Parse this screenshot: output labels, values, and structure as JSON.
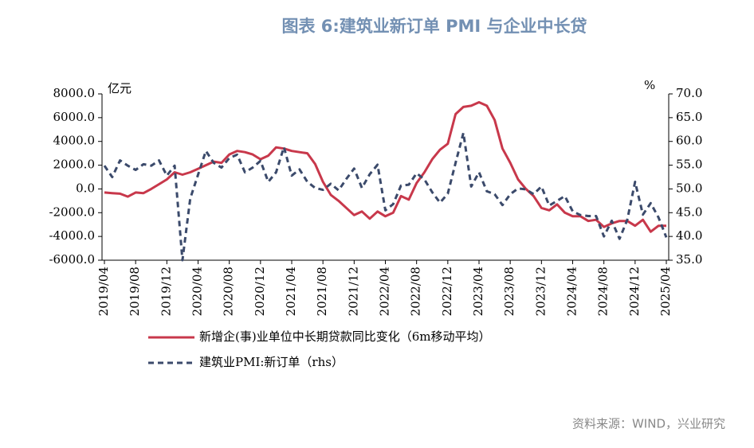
{
  "chart_data": {
    "type": "line",
    "title": "图表 6:建筑业新订单 PMI 与企业中长贷",
    "y_label": "亿元",
    "y2_label": "%",
    "source": "资料来源：WIND，兴业研究",
    "categories": [
      "2019/04",
      null,
      null,
      null,
      "2019/08",
      null,
      null,
      null,
      "2019/12",
      null,
      null,
      null,
      "2020/04",
      null,
      null,
      null,
      "2020/08",
      null,
      null,
      null,
      "2020/12",
      null,
      null,
      null,
      "2021/04",
      null,
      null,
      null,
      "2021/08",
      null,
      null,
      null,
      "2021/12",
      null,
      null,
      null,
      "2022/04",
      null,
      null,
      null,
      "2022/08",
      null,
      null,
      null,
      "2022/12",
      null,
      null,
      null,
      "2023/04",
      null,
      null,
      null,
      "2023/08",
      null,
      null,
      null,
      "2023/12",
      null,
      null,
      null,
      "2024/04",
      null,
      null,
      null,
      "2024/08",
      null,
      null,
      null,
      "2024/12",
      null,
      null,
      null,
      "2025/04"
    ],
    "ylim": [
      -6000,
      8000
    ],
    "yticks": [
      {
        "value": 8000,
        "label": "8000.0"
      },
      {
        "value": 6000,
        "label": "6000.0"
      },
      {
        "value": 4000,
        "label": "4000.0"
      },
      {
        "value": 2000,
        "label": "2000.0"
      },
      {
        "value": 0,
        "label": "0.0"
      },
      {
        "value": -2000,
        "label": "-2000.0"
      },
      {
        "value": -4000,
        "label": "-4000.0"
      },
      {
        "value": -6000,
        "label": "-6000.0"
      }
    ],
    "y2lim": [
      35,
      70
    ],
    "y2ticks": [
      {
        "value": 70,
        "label": "70.0"
      },
      {
        "value": 65,
        "label": "65.0"
      },
      {
        "value": 60,
        "label": "60.0"
      },
      {
        "value": 55,
        "label": "55.0"
      },
      {
        "value": 50,
        "label": "50.0"
      },
      {
        "value": 45,
        "label": "45.0"
      },
      {
        "value": 40,
        "label": "40.0"
      },
      {
        "value": 35,
        "label": "35.0"
      }
    ],
    "series": [
      {
        "name": "新增企(事)业单位中长期贷款同比变化（6m移动平均）",
        "color": "#c8384b",
        "dash": false,
        "values": [
          -300,
          -350,
          -400,
          -650,
          -300,
          -350,
          0,
          400,
          800,
          1400,
          1200,
          1400,
          1700,
          2000,
          2300,
          2200,
          2900,
          3200,
          3100,
          2900,
          2500,
          2800,
          3500,
          3400,
          3200,
          3100,
          3000,
          2100,
          600,
          -500,
          -1000,
          -1600,
          -2200,
          -1900,
          -2500,
          -1900,
          -2300,
          -2000,
          -600,
          -900,
          500,
          1400,
          2500,
          3300,
          3800,
          6300,
          6900,
          7000,
          7300,
          7000,
          5800,
          3400,
          2200,
          800,
          0,
          -600,
          -1600,
          -1800,
          -1300,
          -2000,
          -2300,
          -2300,
          -2700,
          -2600,
          -3200,
          -2900,
          -2700,
          -2700,
          -3100,
          -2600,
          -3600,
          -3100,
          -3100
        ]
      },
      {
        "name": "建筑业PMI:新订单（rhs）",
        "color": "#3b4a6b",
        "dash": true,
        "axis": "y2",
        "values": [
          54.9,
          52.5,
          56,
          54.9,
          54,
          55.2,
          54.9,
          56,
          52.8,
          54.9,
          35,
          48,
          53,
          58,
          55.5,
          54.5,
          56.5,
          57.2,
          53.5,
          54.5,
          55.9,
          51.5,
          53.5,
          58.8,
          52.8,
          54.1,
          51.5,
          50.2,
          49.8,
          51.1,
          49.7,
          52.1,
          54.3,
          50.2,
          53.1,
          55.1,
          45.5,
          46.8,
          50.7,
          50.9,
          53.3,
          52,
          49.3,
          47.1,
          49,
          55.5,
          61.8,
          50.5,
          53.5,
          49.5,
          48.9,
          46.6,
          48.9,
          50.1,
          49.9,
          48.9,
          50.5,
          46.5,
          47.5,
          48.5,
          45.3,
          44.5,
          44.3,
          44.3,
          40,
          43.3,
          39.5,
          43.5,
          51.5,
          44.6,
          47,
          44,
          39.8
        ]
      }
    ]
  }
}
